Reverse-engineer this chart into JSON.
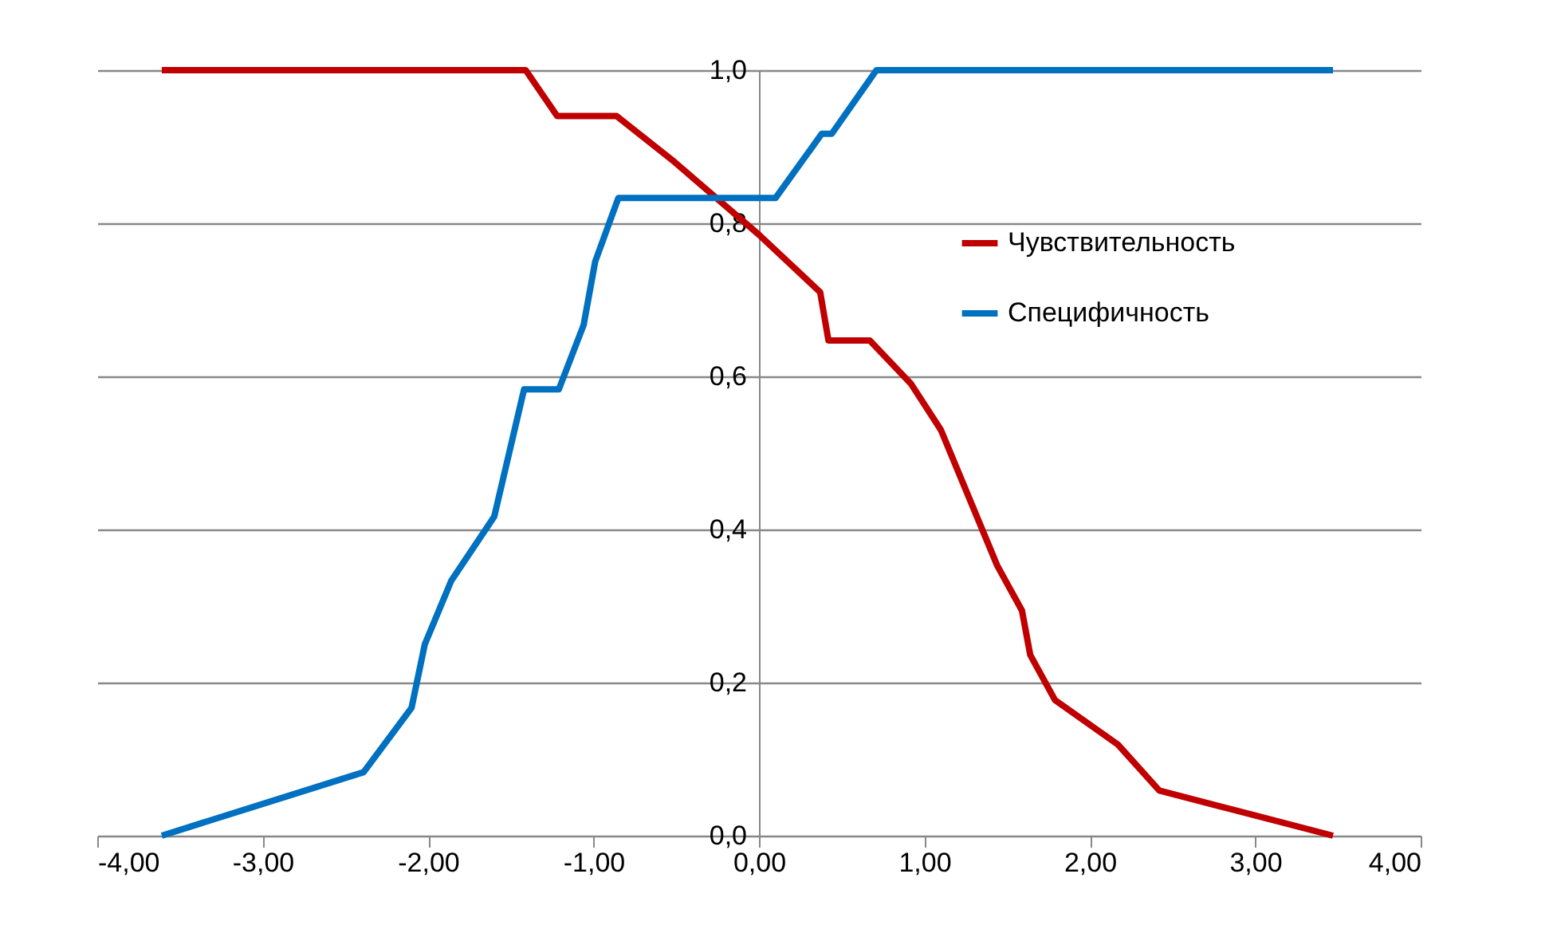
{
  "chart_data": {
    "type": "line",
    "xlim": [
      -4,
      4
    ],
    "ylim": [
      0,
      1
    ],
    "xticks": [
      {
        "value": -4,
        "label": "-4,00"
      },
      {
        "value": -3,
        "label": "-3,00"
      },
      {
        "value": -2,
        "label": "-2,00"
      },
      {
        "value": -1,
        "label": "-1,00"
      },
      {
        "value": 0,
        "label": "0,00"
      },
      {
        "value": 1,
        "label": "1,00"
      },
      {
        "value": 2,
        "label": "2,00"
      },
      {
        "value": 3,
        "label": "3,00"
      },
      {
        "value": 4,
        "label": "4,00"
      }
    ],
    "yticks": [
      {
        "value": 0,
        "label": "0,0"
      },
      {
        "value": 0.2,
        "label": "0,2"
      },
      {
        "value": 0.4,
        "label": "0,4"
      },
      {
        "value": 0.6,
        "label": "0,6"
      },
      {
        "value": 0.8,
        "label": "0,8"
      },
      {
        "value": 1,
        "label": "1,0"
      }
    ],
    "grid": "y",
    "legend": "right",
    "marker": "none",
    "line_style": "solid",
    "series": [
      {
        "name": "Чувствительность",
        "color": "#c00000",
        "x": [
          -3.61,
          -1.41,
          -1.22,
          -0.86,
          -0.51,
          0.0,
          0.37,
          0.42,
          0.67,
          0.92,
          1.1,
          1.44,
          1.59,
          1.64,
          1.79,
          2.17,
          2.42,
          3.47
        ],
        "values": [
          1,
          1,
          0.94,
          0.94,
          0.88,
          0.785,
          0.71,
          0.647,
          0.647,
          0.59,
          0.53,
          0.353,
          0.294,
          0.236,
          0.177,
          0.119,
          0.059,
          0
        ]
      },
      {
        "name": "Специфичность",
        "color": "#0070c0",
        "x": [
          -3.61,
          -2.39,
          -2.1,
          -2.02,
          -1.86,
          -1.6,
          -1.42,
          -1.21,
          -1.06,
          -0.99,
          -0.85,
          0.1,
          0.38,
          0.44,
          0.71,
          3.47
        ],
        "values": [
          0,
          0.083,
          0.167,
          0.25,
          0.333,
          0.417,
          0.583,
          0.583,
          0.667,
          0.75,
          0.833,
          0.833,
          0.917,
          0.917,
          1,
          1
        ]
      }
    ]
  }
}
